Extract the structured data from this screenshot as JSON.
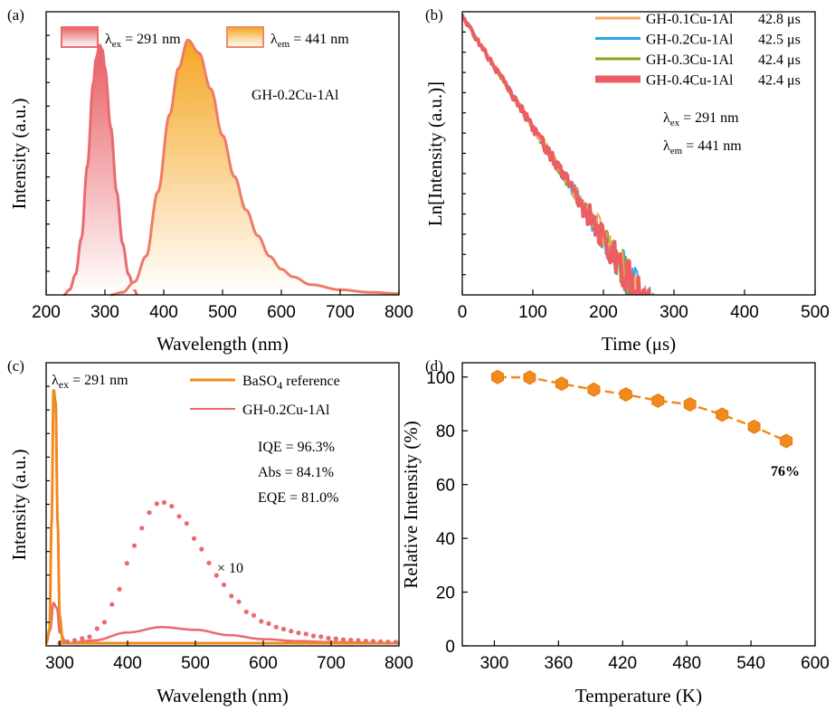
{
  "colors": {
    "pink": "#ea6a6e",
    "orange": "#f08a1c",
    "gold": "#f7c040",
    "blue": "#2ba3e8",
    "olive": "#8da51e",
    "lightOrange": "#f6a65a",
    "red": "#ec5e63"
  },
  "chart_data": [
    {
      "panel": "(a)",
      "type": "area",
      "xlabel": "Wavelength (nm)",
      "ylabel": "Intensity (a.u.)",
      "xlim": [
        200,
        800
      ],
      "ylim": [
        0,
        1.1
      ],
      "xticks": [
        "200",
        "300",
        "400",
        "500",
        "600",
        "700",
        "800"
      ],
      "sample": "GH-0.2Cu-1Al",
      "legend": [
        {
          "label": "λex = 291 nm",
          "sym": "λ",
          "sub": "ex",
          "rest": " = 291 nm"
        },
        {
          "label": "λem = 441 nm",
          "sym": "λ",
          "sub": "em",
          "rest": " = 441 nm"
        }
      ],
      "series": [
        {
          "name": "excitation",
          "peak": 291,
          "x": [
            230,
            240,
            250,
            260,
            270,
            280,
            285,
            291,
            296,
            300,
            310,
            320,
            330,
            340,
            350,
            355
          ],
          "y": [
            0.0,
            0.02,
            0.08,
            0.22,
            0.5,
            0.82,
            0.92,
            0.97,
            0.95,
            0.88,
            0.65,
            0.4,
            0.2,
            0.08,
            0.02,
            0.0
          ]
        },
        {
          "name": "emission",
          "peak": 441,
          "x": [
            310,
            330,
            350,
            370,
            390,
            410,
            425,
            441,
            460,
            480,
            500,
            520,
            540,
            560,
            580,
            600,
            620,
            650,
            700,
            750,
            800
          ],
          "y": [
            0.0,
            0.01,
            0.05,
            0.15,
            0.4,
            0.7,
            0.88,
            0.99,
            0.94,
            0.8,
            0.62,
            0.46,
            0.33,
            0.23,
            0.15,
            0.1,
            0.07,
            0.04,
            0.02,
            0.01,
            0.005
          ]
        }
      ]
    },
    {
      "panel": "(b)",
      "type": "line",
      "xlabel": "Time (μs)",
      "ylabel": "Ln[Intensity (a.u.)]",
      "xlim": [
        0,
        500
      ],
      "ylim": [
        -8,
        0
      ],
      "xticks": [
        "0",
        "100",
        "200",
        "300",
        "400",
        "500"
      ],
      "excitation": {
        "sym": "λ",
        "sub": "ex",
        "rest": " = 291 nm"
      },
      "emission": {
        "sym": "λ",
        "sub": "em",
        "rest": " = 441 nm"
      },
      "series": [
        {
          "name": "GH-0.1Cu-1Al",
          "lifetime": "42.8 μs",
          "tau": 42.8
        },
        {
          "name": "GH-0.2Cu-1Al",
          "lifetime": "42.5 μs",
          "tau": 42.5
        },
        {
          "name": "GH-0.3Cu-1Al",
          "lifetime": "42.4 μs",
          "tau": 42.4
        },
        {
          "name": "GH-0.4Cu-1Al",
          "lifetime": "42.4 μs",
          "tau": 42.4
        }
      ]
    },
    {
      "panel": "(c)",
      "type": "line",
      "xlabel": "Wavelength (nm)",
      "ylabel": "Intensity (a.u.)",
      "xlim": [
        280,
        800
      ],
      "ylim": [
        0,
        1.05
      ],
      "xticks": [
        "300",
        "400",
        "500",
        "600",
        "700",
        "800"
      ],
      "excitation": {
        "sym": "λ",
        "sub": "ex",
        "rest": " = 291 nm"
      },
      "multiplier": "× 10",
      "legend": [
        {
          "name": "BaSO4 reference",
          "pre": "BaSO",
          "sub": "4",
          "post": " reference"
        },
        {
          "name": "GH-0.2Cu-1Al"
        }
      ],
      "stats": [
        "IQE = 96.3%",
        "Abs = 84.1%",
        "EQE =  81.0%"
      ],
      "series": [
        {
          "name": "BaSO4 reference",
          "x": [
            280,
            285,
            288,
            291,
            294,
            297,
            300,
            305,
            800
          ],
          "y": [
            0.0,
            0.05,
            0.45,
            0.95,
            0.9,
            0.45,
            0.1,
            0.0,
            0.0
          ]
        },
        {
          "name": "GH-0.2Cu-1Al",
          "x": [
            280,
            286,
            291,
            296,
            300,
            310,
            350,
            400,
            450,
            500,
            550,
            600,
            650,
            700,
            800
          ],
          "y": [
            0.0,
            0.05,
            0.15,
            0.13,
            0.04,
            0.0,
            0.01,
            0.04,
            0.06,
            0.05,
            0.03,
            0.015,
            0.008,
            0.004,
            0.0
          ]
        },
        {
          "name": "GH-0.2Cu-1Al ×10",
          "x": [
            300,
            320,
            340,
            360,
            380,
            400,
            420,
            440,
            450,
            460,
            480,
            500,
            520,
            540,
            560,
            580,
            600,
            620,
            640,
            660,
            680,
            700,
            720,
            740,
            760,
            780,
            800
          ],
          "y": [
            0.0,
            0.01,
            0.02,
            0.06,
            0.15,
            0.3,
            0.43,
            0.52,
            0.53,
            0.52,
            0.47,
            0.39,
            0.3,
            0.22,
            0.16,
            0.11,
            0.08,
            0.06,
            0.045,
            0.035,
            0.025,
            0.018,
            0.013,
            0.01,
            0.007,
            0.005,
            0.004
          ]
        }
      ]
    },
    {
      "panel": "(d)",
      "type": "line",
      "xlabel": "Temperature (K)",
      "ylabel": "Relative Intensity (%)",
      "xlim": [
        270,
        600
      ],
      "ylim": [
        0,
        108
      ],
      "xticks": [
        "300",
        "360",
        "420",
        "480",
        "540",
        "600"
      ],
      "yticks": [
        "0",
        "20",
        "40",
        "60",
        "80",
        "100"
      ],
      "annotation": "76%",
      "series": [
        {
          "name": "Relative intensity",
          "x": [
            303,
            333,
            363,
            393,
            423,
            453,
            483,
            513,
            543,
            573
          ],
          "y": [
            100,
            99.8,
            97.5,
            95.3,
            93.5,
            91.2,
            89.8,
            86,
            81.5,
            76.2
          ]
        }
      ]
    }
  ]
}
